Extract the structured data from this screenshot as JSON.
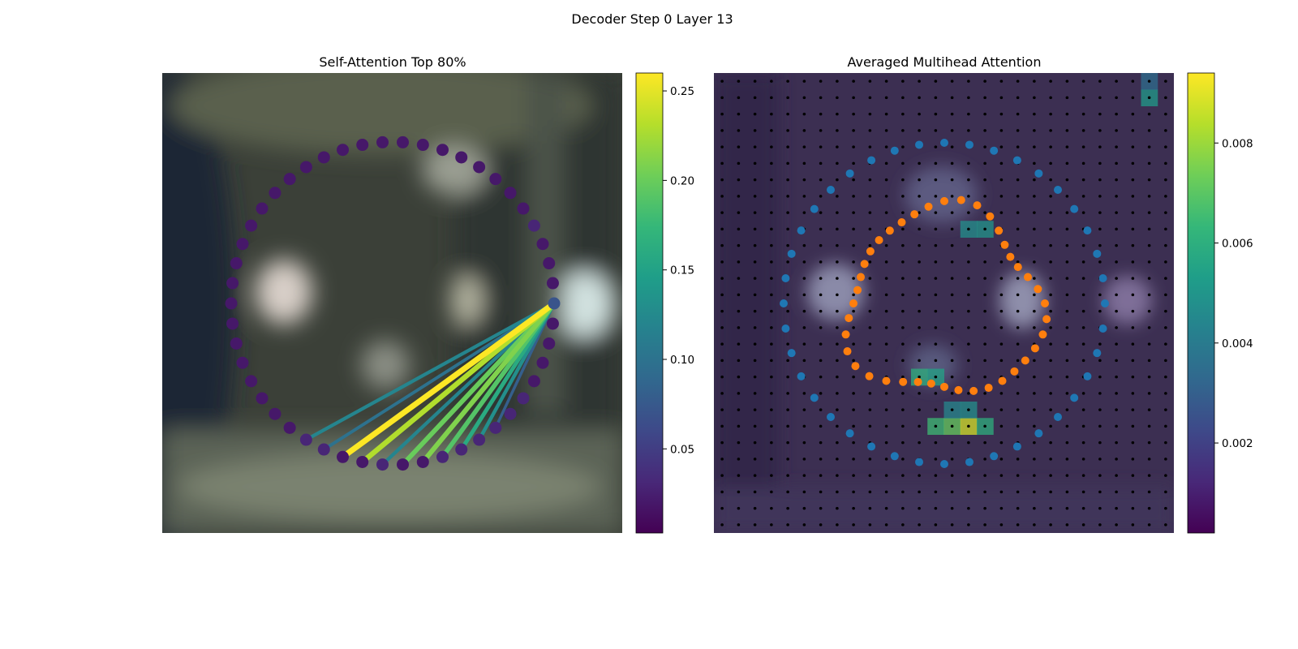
{
  "suptitle": "Decoder Step 0 Layer 13",
  "colors": {
    "viridis": [
      "#440154",
      "#482878",
      "#3e4989",
      "#31688e",
      "#26828e",
      "#1f9e89",
      "#35b779",
      "#6ece58",
      "#b5de2b",
      "#fde725"
    ],
    "outer_points": "#1f77b4",
    "inner_points": "#ff7f0e",
    "grid_dots": "#000000"
  },
  "chart_data": [
    {
      "type": "scatter",
      "title": "Self-Attention Top 80%",
      "description_kind": "attention lines from query point over blurred image",
      "num_points": 50,
      "center": [
        0,
        0
      ],
      "radius": 1,
      "query_index": 0,
      "point_values": [
        0.07,
        0.02,
        0.02,
        0.02,
        0.03,
        0.02,
        0.02,
        0.02,
        0.02,
        0.02,
        0.02,
        0.02,
        0.02,
        0.02,
        0.02,
        0.02,
        0.02,
        0.02,
        0.02,
        0.02,
        0.02,
        0.02,
        0.02,
        0.02,
        0.02,
        0.02,
        0.02,
        0.02,
        0.02,
        0.02,
        0.02,
        0.02,
        0.02,
        0.03,
        0.03,
        0.02,
        0.02,
        0.03,
        0.02,
        0.02,
        0.03,
        0.03,
        0.03,
        0.03,
        0.03,
        0.03,
        0.02,
        0.02,
        0.02,
        0.02
      ],
      "attention_lines": [
        {
          "to_index": 43,
          "value": 0.08
        },
        {
          "to_index": 42,
          "value": 0.13
        },
        {
          "to_index": 41,
          "value": 0.16
        },
        {
          "to_index": 40,
          "value": 0.19
        },
        {
          "to_index": 39,
          "value": 0.21
        },
        {
          "to_index": 38,
          "value": 0.2
        },
        {
          "to_index": 37,
          "value": 0.12
        },
        {
          "to_index": 36,
          "value": 0.23
        },
        {
          "to_index": 35,
          "value": 0.26
        },
        {
          "to_index": 34,
          "value": 0.1
        },
        {
          "to_index": 33,
          "value": 0.12
        }
      ],
      "colorbar": {
        "min": 0.003,
        "max": 0.26,
        "ticks": [
          "0.05",
          "0.10",
          "0.15",
          "0.20",
          "0.25"
        ],
        "tick_values": [
          0.05,
          0.1,
          0.15,
          0.2,
          0.25
        ]
      }
    },
    {
      "type": "heatmap",
      "title": "Averaged Multihead Attention",
      "grid_size": 28,
      "outer_points_count": 40,
      "inner_points_count": 40,
      "hot_cells": [
        {
          "row": 18,
          "col": 12,
          "value": 0.006
        },
        {
          "row": 18,
          "col": 13,
          "value": 0.0055
        },
        {
          "row": 21,
          "col": 13,
          "value": 0.0065
        },
        {
          "row": 21,
          "col": 14,
          "value": 0.0072
        },
        {
          "row": 21,
          "col": 15,
          "value": 0.0088
        },
        {
          "row": 21,
          "col": 16,
          "value": 0.006
        },
        {
          "row": 20,
          "col": 14,
          "value": 0.0045
        },
        {
          "row": 20,
          "col": 15,
          "value": 0.0048
        },
        {
          "row": 9,
          "col": 15,
          "value": 0.0048
        },
        {
          "row": 9,
          "col": 16,
          "value": 0.005
        },
        {
          "row": 1,
          "col": 26,
          "value": 0.0052
        },
        {
          "row": 0,
          "col": 26,
          "value": 0.0035
        }
      ],
      "colorbar": {
        "min": 0.0002,
        "max": 0.0094,
        "ticks": [
          "0.002",
          "0.004",
          "0.006",
          "0.008"
        ],
        "tick_values": [
          0.002,
          0.004,
          0.006,
          0.008
        ]
      }
    }
  ]
}
